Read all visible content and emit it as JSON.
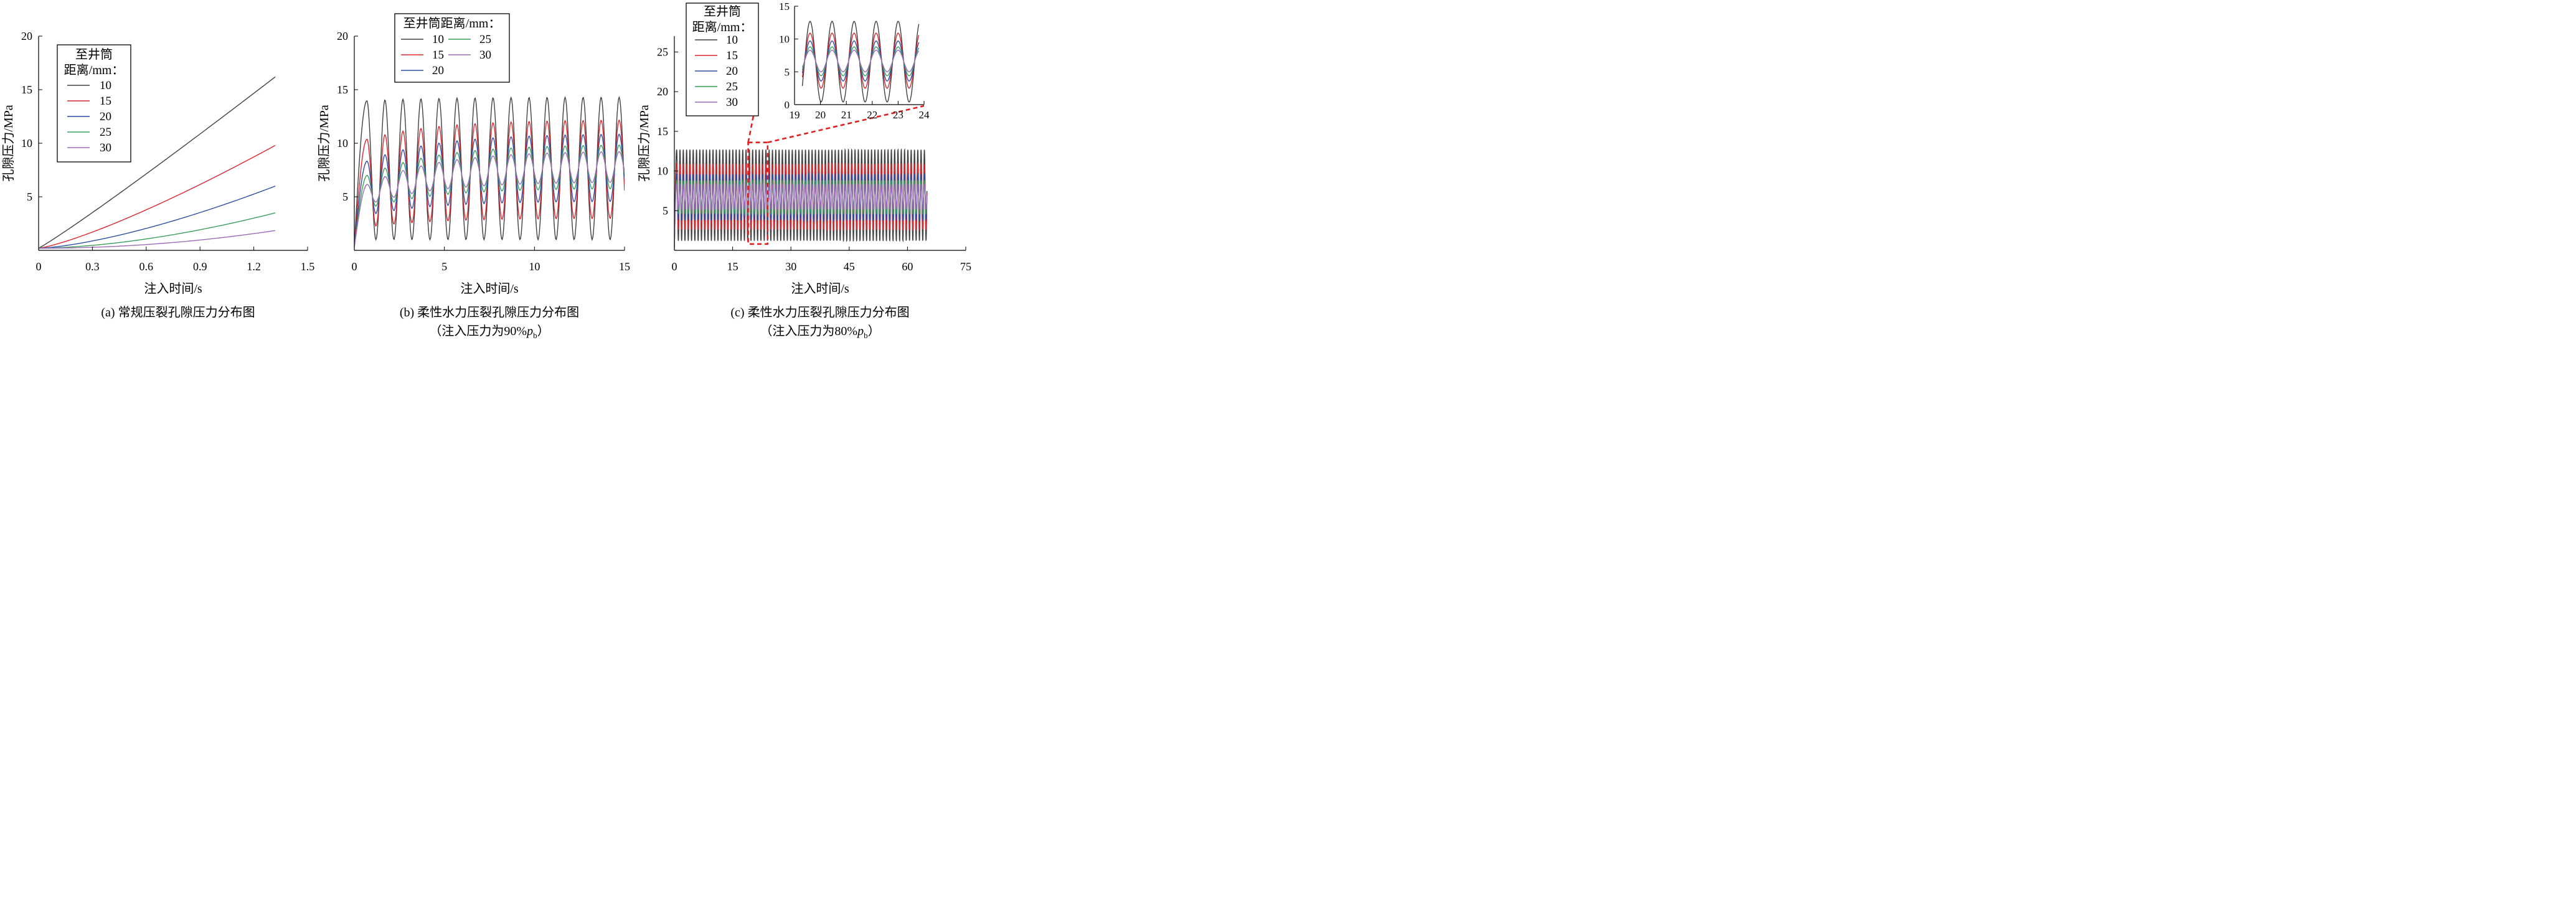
{
  "chart_data": [
    {
      "id": "a",
      "type": "line",
      "ylabel": "孔隙压力/MPa",
      "xlabel": "注入时间/s",
      "caption_lines": [
        "(a) 常规压裂孔隙压力分布图"
      ],
      "xlim": [
        0,
        1.5
      ],
      "ylim": [
        0,
        20
      ],
      "xticks": [
        0,
        0.3,
        0.6,
        0.9,
        1.2,
        1.5
      ],
      "xtick_labels": [
        "0",
        "0.3",
        "0.6",
        "0.9",
        "1.2",
        "1.5"
      ],
      "yticks": [
        5,
        10,
        15,
        20
      ],
      "ytick_labels": [
        "5",
        "10",
        "15",
        "20"
      ],
      "legend": {
        "title_lines": [
          "至井筒",
          "距离/mm："
        ],
        "columns": 1,
        "position": "top-left"
      },
      "series": [
        {
          "name": "10",
          "color": "#404040",
          "curve": {
            "kind": "power",
            "t_end": 1.32,
            "start": 0.2,
            "end": 16.2,
            "exponent": 1.06
          }
        },
        {
          "name": "15",
          "color": "#d9262c",
          "curve": {
            "kind": "power",
            "t_end": 1.32,
            "start": 0.2,
            "end": 9.8,
            "exponent": 1.25
          }
        },
        {
          "name": "20",
          "color": "#2b4fa6",
          "curve": {
            "kind": "power",
            "t_end": 1.32,
            "start": 0.2,
            "end": 6.0,
            "exponent": 1.45
          }
        },
        {
          "name": "25",
          "color": "#3a9e5a",
          "curve": {
            "kind": "power",
            "t_end": 1.32,
            "start": 0.2,
            "end": 3.5,
            "exponent": 1.7
          }
        },
        {
          "name": "30",
          "color": "#9c6bb8",
          "curve": {
            "kind": "power",
            "t_end": 1.32,
            "start": 0.2,
            "end": 1.85,
            "exponent": 2.0
          }
        }
      ]
    },
    {
      "id": "b",
      "type": "line",
      "ylabel": "孔隙压力/MPa",
      "xlabel": "注入时间/s",
      "caption_lines": [
        "(b) 柔性水力压裂孔隙压力分布图",
        "（注入压力为90%p_b）"
      ],
      "xlim": [
        0,
        15
      ],
      "ylim": [
        0,
        20
      ],
      "xticks": [
        0,
        5,
        10,
        15
      ],
      "xtick_labels": [
        "0",
        "5",
        "10",
        "15"
      ],
      "yticks": [
        5,
        10,
        15,
        20
      ],
      "ytick_labels": [
        "5",
        "10",
        "15",
        "20"
      ],
      "legend": {
        "title_lines": [
          "至井筒距离/mm："
        ],
        "columns": 2,
        "position": "top-center"
      },
      "series": [
        {
          "name": "10",
          "color": "#404040",
          "curve": {
            "kind": "oscillation",
            "t_end": 15,
            "period": 1.0,
            "peak_time": 0.7,
            "max": 13.9,
            "min": 1.0,
            "max_end": 14.3,
            "min_end": 1.0
          }
        },
        {
          "name": "15",
          "color": "#d9262c",
          "curve": {
            "kind": "oscillation",
            "t_end": 15,
            "period": 1.0,
            "peak_time": 0.7,
            "max": 10.0,
            "min": 2.0,
            "max_end": 12.2,
            "min_end": 3.0
          }
        },
        {
          "name": "20",
          "color": "#2b4fa6",
          "curve": {
            "kind": "oscillation",
            "t_end": 15,
            "period": 1.0,
            "peak_time": 0.7,
            "max": 7.8,
            "min": 3.0,
            "max_end": 10.9,
            "min_end": 4.6
          }
        },
        {
          "name": "25",
          "color": "#3a9e5a",
          "curve": {
            "kind": "oscillation",
            "t_end": 15,
            "period": 1.0,
            "peak_time": 0.7,
            "max": 6.4,
            "min": 3.5,
            "max_end": 9.9,
            "min_end": 5.8
          }
        },
        {
          "name": "30",
          "color": "#9c6bb8",
          "curve": {
            "kind": "oscillation",
            "t_end": 15,
            "period": 1.0,
            "peak_time": 0.7,
            "max": 5.5,
            "min": 3.8,
            "max_end": 9.3,
            "min_end": 6.4
          }
        }
      ]
    },
    {
      "id": "c",
      "type": "line",
      "ylabel": "孔隙压力/MPa",
      "xlabel": "注入时间/s",
      "caption_lines": [
        "(c) 柔性水力压裂孔隙压力分布图",
        "（注入压力为80%p_b）"
      ],
      "xlim": [
        0,
        75
      ],
      "ylim": [
        0,
        27
      ],
      "xticks": [
        0,
        15,
        30,
        45,
        60,
        75
      ],
      "xtick_labels": [
        "0",
        "15",
        "30",
        "45",
        "60",
        "75"
      ],
      "yticks": [
        5,
        10,
        15,
        20,
        25
      ],
      "ytick_labels": [
        "5",
        "10",
        "15",
        "20",
        "25"
      ],
      "legend": {
        "title_lines": [
          "至井筒",
          "距离/mm："
        ],
        "columns": 1,
        "position": "top-left"
      },
      "highlight_box": {
        "x": [
          19,
          24
        ],
        "y": [
          0.8,
          13.6
        ],
        "color": "#e02020"
      },
      "series": [
        {
          "name": "10",
          "color": "#404040",
          "curve": {
            "kind": "oscillation",
            "t_end": 65,
            "period": 0.85,
            "peak_time": 0.6,
            "max": 12.7,
            "min": 1.2,
            "max_end": 12.7,
            "min_end": 1.2
          }
        },
        {
          "name": "15",
          "color": "#d9262c",
          "curve": {
            "kind": "oscillation",
            "t_end": 65,
            "period": 0.85,
            "peak_time": 0.6,
            "max": 10.9,
            "min": 2.6,
            "max_end": 10.9,
            "min_end": 2.6
          }
        },
        {
          "name": "20",
          "color": "#2b4fa6",
          "curve": {
            "kind": "oscillation",
            "t_end": 65,
            "period": 0.85,
            "peak_time": 0.6,
            "max": 9.6,
            "min": 3.8,
            "max_end": 9.6,
            "min_end": 3.8
          }
        },
        {
          "name": "25",
          "color": "#3a9e5a",
          "curve": {
            "kind": "oscillation",
            "t_end": 65,
            "period": 0.85,
            "peak_time": 0.6,
            "max": 8.8,
            "min": 4.6,
            "max_end": 8.8,
            "min_end": 4.6
          }
        },
        {
          "name": "30",
          "color": "#9c6bb8",
          "curve": {
            "kind": "oscillation",
            "t_end": 65,
            "period": 0.85,
            "peak_time": 0.6,
            "max": 8.3,
            "min": 5.2,
            "max_end": 8.3,
            "min_end": 5.2
          }
        }
      ]
    },
    {
      "id": "c-inset",
      "type": "line",
      "xlim": [
        19,
        24
      ],
      "ylim": [
        0,
        15
      ],
      "xticks": [
        19,
        20,
        21,
        22,
        23,
        24
      ],
      "xtick_labels": [
        "19",
        "20",
        "21",
        "22",
        "23",
        "24"
      ],
      "yticks": [
        0,
        5,
        10,
        15
      ],
      "ytick_labels": [
        "0",
        "5",
        "10",
        "15"
      ],
      "series": [
        {
          "name": "10",
          "color": "#404040",
          "curve": {
            "kind": "oscillation",
            "t_start": 19.3,
            "t_end": 23.8,
            "period": 0.85,
            "peak_time": 19.6,
            "max": 12.7,
            "min": 0.4,
            "max_end": 12.7,
            "min_end": 0.4
          }
        },
        {
          "name": "15",
          "color": "#d9262c",
          "curve": {
            "kind": "oscillation",
            "t_start": 19.3,
            "t_end": 23.8,
            "period": 0.85,
            "peak_time": 19.6,
            "max": 10.9,
            "min": 2.5,
            "max_end": 10.9,
            "min_end": 2.5
          }
        },
        {
          "name": "20",
          "color": "#2b4fa6",
          "curve": {
            "kind": "oscillation",
            "t_start": 19.3,
            "t_end": 23.8,
            "period": 0.85,
            "peak_time": 19.6,
            "max": 9.7,
            "min": 3.6,
            "max_end": 9.7,
            "min_end": 3.6
          }
        },
        {
          "name": "25",
          "color": "#3a9e5a",
          "curve": {
            "kind": "oscillation",
            "t_start": 19.3,
            "t_end": 23.8,
            "period": 0.85,
            "peak_time": 19.6,
            "max": 8.8,
            "min": 4.4,
            "max_end": 8.8,
            "min_end": 4.4
          }
        },
        {
          "name": "30",
          "color": "#9c6bb8",
          "curve": {
            "kind": "oscillation",
            "t_start": 19.3,
            "t_end": 23.8,
            "period": 0.85,
            "peak_time": 19.6,
            "max": 8.3,
            "min": 5.0,
            "max_end": 8.3,
            "min_end": 5.0
          }
        }
      ]
    }
  ]
}
